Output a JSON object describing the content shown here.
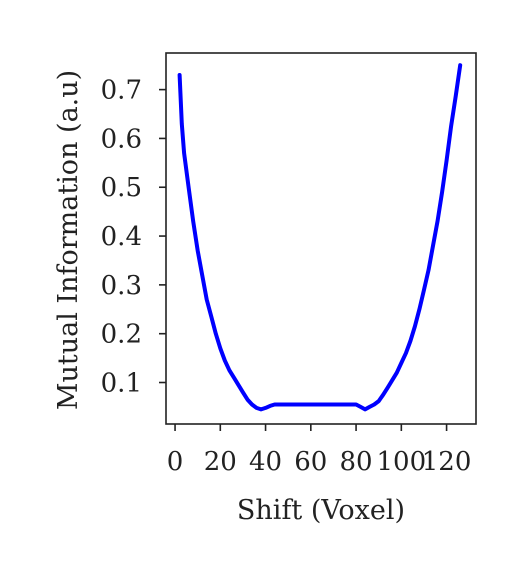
{
  "chart_data": {
    "type": "line",
    "title": "",
    "xlabel": "Shift (Voxel)",
    "ylabel": "Mutual Information (a.u)",
    "xlim": [
      -4,
      133
    ],
    "ylim": [
      0.015,
      0.775
    ],
    "xticks": [
      0,
      20,
      40,
      60,
      80,
      100,
      120
    ],
    "xtick_labels": [
      "0",
      "20",
      "40",
      "60",
      "80",
      "100",
      "120"
    ],
    "yticks": [
      0.1,
      0.2,
      0.3,
      0.4,
      0.5,
      0.6,
      0.7
    ],
    "ytick_labels": [
      "0.1",
      "0.2",
      "0.3",
      "0.4",
      "0.5",
      "0.6",
      "0.7"
    ],
    "grid": false,
    "series": [
      {
        "color": "#0000ff",
        "x": [
          2,
          3,
          4,
          6,
          8,
          10,
          12,
          14,
          16,
          18,
          20,
          22,
          24,
          26,
          28,
          30,
          32,
          34,
          36,
          38,
          40,
          42,
          44,
          46,
          48,
          50,
          55,
          60,
          65,
          70,
          75,
          80,
          82,
          84,
          86,
          88,
          90,
          92,
          94,
          96,
          98,
          100,
          102,
          104,
          106,
          108,
          110,
          112,
          114,
          116,
          118,
          120,
          122,
          124,
          126
        ],
        "y": [
          0.73,
          0.63,
          0.57,
          0.5,
          0.43,
          0.37,
          0.32,
          0.27,
          0.235,
          0.2,
          0.17,
          0.145,
          0.125,
          0.11,
          0.095,
          0.08,
          0.065,
          0.055,
          0.048,
          0.045,
          0.048,
          0.052,
          0.055,
          0.055,
          0.055,
          0.055,
          0.055,
          0.055,
          0.055,
          0.055,
          0.055,
          0.055,
          0.05,
          0.045,
          0.05,
          0.055,
          0.062,
          0.075,
          0.09,
          0.105,
          0.12,
          0.14,
          0.16,
          0.185,
          0.215,
          0.25,
          0.29,
          0.33,
          0.38,
          0.43,
          0.49,
          0.555,
          0.625,
          0.685,
          0.75
        ]
      }
    ]
  }
}
